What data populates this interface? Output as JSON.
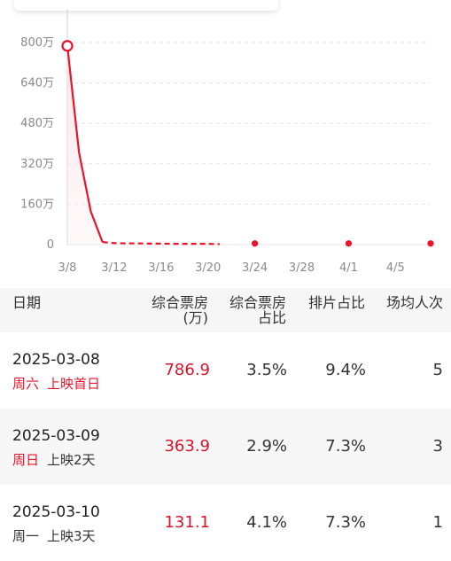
{
  "chart_data": {
    "type": "line",
    "x_ticks": [
      "3/8",
      "3/12",
      "3/16",
      "3/20",
      "3/24",
      "3/28",
      "4/1",
      "4/5"
    ],
    "y_ticks": [
      "0",
      "160万",
      "320万",
      "480万",
      "640万",
      "800万"
    ],
    "ylim": [
      0,
      800
    ],
    "solid_series": {
      "x": [
        0,
        1,
        2,
        3
      ],
      "y": [
        786.9,
        363.9,
        131.1,
        10
      ]
    },
    "dashed_series": {
      "x": [
        3,
        4,
        5,
        6,
        7,
        8,
        9,
        10,
        11,
        12,
        13
      ],
      "y": [
        10,
        6,
        5,
        5,
        4,
        4,
        3,
        3,
        3,
        3,
        2
      ]
    },
    "point_markers": {
      "x": [
        16,
        24,
        31
      ],
      "y": [
        1,
        1,
        1
      ]
    },
    "highlight_point": {
      "x": 0,
      "y": 786.9
    },
    "x_day_range": [
      0,
      31
    ],
    "colors": {
      "line": "#e8142b",
      "grid": "#e2e2e2",
      "area": "#fbe3e5"
    }
  },
  "table": {
    "headers": {
      "date": "日期",
      "box_office_l1": "综合票房",
      "box_office_l2": "(万)",
      "share_l1": "综合票房",
      "share_l2": "占比",
      "schedule": "排片占比",
      "avg": "场均人次"
    },
    "rows": [
      {
        "date": "2025-03-08",
        "weekday": "周六",
        "weekday_red": true,
        "release": "上映首日",
        "release_red": true,
        "box_office": "786.9",
        "share": "3.5%",
        "schedule": "9.4%",
        "avg": "5"
      },
      {
        "date": "2025-03-09",
        "weekday": "周日",
        "weekday_red": true,
        "release": "上映2天",
        "release_red": false,
        "box_office": "363.9",
        "share": "2.9%",
        "schedule": "7.3%",
        "avg": "3"
      },
      {
        "date": "2025-03-10",
        "weekday": "周一",
        "weekday_red": false,
        "release": "上映3天",
        "release_red": false,
        "box_office": "131.1",
        "share": "4.1%",
        "schedule": "7.3%",
        "avg": "1"
      }
    ]
  }
}
